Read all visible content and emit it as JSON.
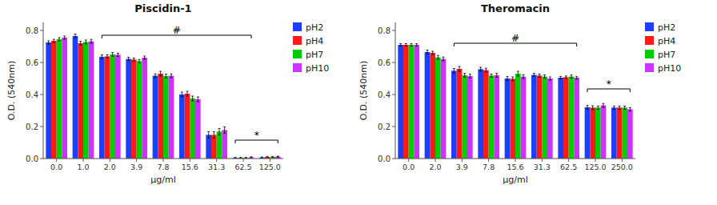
{
  "chart_data": [
    {
      "type": "bar",
      "title": "Piscidin-1",
      "x_label": "μg/ml",
      "y_label": "O.D. (540nm)",
      "categories": [
        "0.0",
        "1.0",
        "2.0",
        "3.9",
        "7.8",
        "15.6",
        "31.3",
        "62.5",
        "125.0"
      ],
      "series": [
        {
          "name": "pH2",
          "color": "#1a3fff",
          "values": [
            0.725,
            0.765,
            0.635,
            0.622,
            0.517,
            0.4,
            0.148,
            0.005,
            0.007
          ],
          "errors": [
            0.01,
            0.012,
            0.012,
            0.01,
            0.012,
            0.015,
            0.02,
            0.003,
            0.003
          ]
        },
        {
          "name": "pH4",
          "color": "#ff1a1a",
          "values": [
            0.735,
            0.72,
            0.638,
            0.618,
            0.53,
            0.405,
            0.148,
            0.005,
            0.01
          ],
          "errors": [
            0.01,
            0.012,
            0.01,
            0.01,
            0.015,
            0.015,
            0.02,
            0.003,
            0.003
          ]
        },
        {
          "name": "pH7",
          "color": "#00cc00",
          "values": [
            0.745,
            0.728,
            0.65,
            0.608,
            0.515,
            0.375,
            0.168,
            0.005,
            0.01
          ],
          "errors": [
            0.01,
            0.012,
            0.012,
            0.01,
            0.012,
            0.015,
            0.02,
            0.003,
            0.003
          ]
        },
        {
          "name": "pH10",
          "color": "#cc33ff",
          "values": [
            0.755,
            0.732,
            0.648,
            0.63,
            0.517,
            0.37,
            0.178,
            0.008,
            0.012
          ],
          "errors": [
            0.01,
            0.012,
            0.01,
            0.01,
            0.012,
            0.015,
            0.02,
            0.003,
            0.003
          ]
        }
      ],
      "ylim": [
        0.0,
        0.85
      ],
      "yticks": [
        {
          "value": 0,
          "label": "0.0"
        },
        0.2,
        0.4,
        0.6,
        0.8
      ],
      "grid": false,
      "legend": "right",
      "annotations": [
        {
          "text": "#",
          "y": 0.77,
          "from": "2.0",
          "to": "62.5"
        },
        {
          "text": "*",
          "y": 0.115,
          "from": "62.5",
          "to": "125.0"
        }
      ]
    },
    {
      "type": "bar",
      "title": "Theromacin",
      "x_label": "μg/ml",
      "y_label": "O.D. (540nm)",
      "categories": [
        "0.0",
        "2.0",
        "3.9",
        "7.8",
        "15.6",
        "31.3",
        "62.5",
        "125.0",
        "250.0"
      ],
      "series": [
        {
          "name": "pH2",
          "color": "#1a3fff",
          "values": [
            0.71,
            0.665,
            0.548,
            0.558,
            0.5,
            0.522,
            0.505,
            0.32,
            0.318
          ],
          "errors": [
            0.008,
            0.012,
            0.015,
            0.012,
            0.012,
            0.01,
            0.008,
            0.012,
            0.01
          ]
        },
        {
          "name": "pH4",
          "color": "#ff1a1a",
          "values": [
            0.71,
            0.66,
            0.56,
            0.552,
            0.498,
            0.518,
            0.508,
            0.318,
            0.318
          ],
          "errors": [
            0.008,
            0.01,
            0.015,
            0.012,
            0.012,
            0.01,
            0.008,
            0.012,
            0.01
          ]
        },
        {
          "name": "pH7",
          "color": "#00cc00",
          "values": [
            0.71,
            0.632,
            0.52,
            0.518,
            0.53,
            0.512,
            0.512,
            0.318,
            0.318
          ],
          "errors": [
            0.008,
            0.012,
            0.012,
            0.01,
            0.015,
            0.01,
            0.01,
            0.01,
            0.01
          ]
        },
        {
          "name": "pH10",
          "color": "#cc33ff",
          "values": [
            0.71,
            0.622,
            0.515,
            0.52,
            0.512,
            0.5,
            0.505,
            0.332,
            0.308
          ],
          "errors": [
            0.008,
            0.012,
            0.012,
            0.012,
            0.012,
            0.01,
            0.008,
            0.012,
            0.01
          ]
        }
      ],
      "ylim": [
        0.0,
        0.85
      ],
      "yticks": [
        {
          "value": 0,
          "label": "0.0"
        },
        0.2,
        0.4,
        0.6,
        0.8
      ],
      "grid": false,
      "legend": "right",
      "annotations": [
        {
          "text": "#",
          "y": 0.72,
          "from": "3.9",
          "to": "62.5"
        },
        {
          "text": "*",
          "y": 0.435,
          "from": "125.0",
          "to": "250.0"
        }
      ]
    }
  ]
}
